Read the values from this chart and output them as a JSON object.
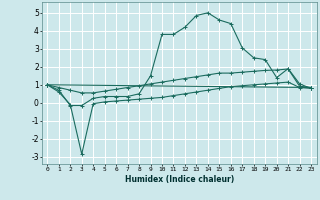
{
  "xlabel": "Humidex (Indice chaleur)",
  "bg_color": "#cde8eb",
  "grid_color": "#ffffff",
  "line_color": "#1a6b5e",
  "xlim": [
    -0.5,
    23.5
  ],
  "ylim": [
    -3.4,
    5.6
  ],
  "yticks": [
    -3,
    -2,
    -1,
    0,
    1,
    2,
    3,
    4,
    5
  ],
  "xticks": [
    0,
    1,
    2,
    3,
    4,
    5,
    6,
    7,
    8,
    9,
    10,
    11,
    12,
    13,
    14,
    15,
    16,
    17,
    18,
    19,
    20,
    21,
    22,
    23
  ],
  "series1_x": [
    0,
    1,
    2,
    3,
    4,
    5,
    6,
    7,
    8,
    9,
    10,
    11,
    12,
    13,
    14,
    15,
    16,
    17,
    18,
    19,
    20,
    21,
    22,
    23
  ],
  "series1_y": [
    1.0,
    0.7,
    -0.15,
    -0.15,
    0.25,
    0.35,
    0.35,
    0.35,
    0.5,
    1.5,
    3.8,
    3.8,
    4.2,
    4.85,
    5.0,
    4.6,
    4.4,
    3.05,
    2.5,
    2.4,
    1.4,
    1.9,
    1.05,
    0.8
  ],
  "series2_x": [
    0,
    23
  ],
  "series2_y": [
    1.0,
    0.85
  ],
  "series3_x": [
    0,
    1,
    2,
    3,
    4,
    5,
    6,
    7,
    8,
    9,
    10,
    11,
    12,
    13,
    14,
    15,
    16,
    17,
    18,
    19,
    20,
    21,
    22,
    23
  ],
  "series3_y": [
    1.0,
    0.85,
    0.7,
    0.55,
    0.55,
    0.65,
    0.75,
    0.85,
    0.95,
    1.05,
    1.15,
    1.25,
    1.35,
    1.45,
    1.55,
    1.65,
    1.65,
    1.7,
    1.75,
    1.8,
    1.82,
    1.88,
    0.92,
    0.85
  ],
  "series4_x": [
    0,
    1,
    2,
    3,
    4,
    5,
    6,
    7,
    8,
    9,
    10,
    11,
    12,
    13,
    14,
    15,
    16,
    17,
    18,
    19,
    20,
    21,
    22,
    23
  ],
  "series4_y": [
    1.0,
    0.6,
    -0.1,
    -2.85,
    -0.05,
    0.05,
    0.1,
    0.15,
    0.2,
    0.25,
    0.3,
    0.4,
    0.5,
    0.6,
    0.7,
    0.8,
    0.9,
    0.95,
    1.0,
    1.05,
    1.1,
    1.15,
    0.85,
    0.8
  ]
}
